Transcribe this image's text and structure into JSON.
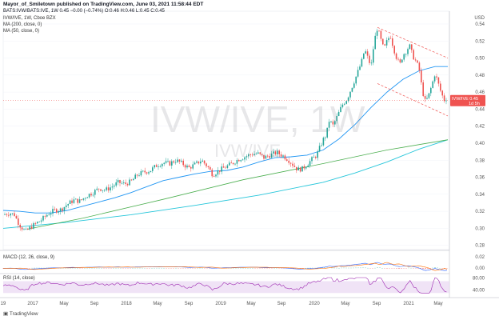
{
  "header": {
    "line1": "Mayor_of_Smiletown published on TradingView.com, June 03, 2021 11:58:44 EDT",
    "line2": "BATS:IVW/BATS:IVE, 1W  0.45 −0.00 (−0.74%) O:0.46 H:0.46 L:0.45 C:0.45",
    "symbol_line": "IVW/IVE, 1W, Cboe BZX",
    "ma200": "MA (200, close, 0)",
    "ma50": "MA (50, close, 0)"
  },
  "watermark": {
    "big": "IVW/IVE, 1W",
    "small": "IVW/IVE"
  },
  "price_tag": {
    "label": "IVW/IVE",
    "value": "0.45",
    "sub": "1d 5h"
  },
  "currency": "USD",
  "macd_label": "MACD (12, 26, close, 9)",
  "rsi_label": "RSI (14, close)",
  "footer": "TradingView",
  "colors": {
    "up": "#26a69a",
    "down": "#ef5350",
    "ma50": "#2196f3",
    "ma200": "#4caf50",
    "channel": "#ef5350",
    "rsi": "#9c27b0",
    "rsi_band": "#ead7f2"
  },
  "chart_data": {
    "type": "candlestick",
    "title": "IVW/IVE, 1W, Cboe BZX",
    "x_ticks": [
      "19",
      "2017",
      "May",
      "Sep",
      "2018",
      "May",
      "Sep",
      "2019",
      "May",
      "Sep",
      "2020",
      "May",
      "Sep",
      "2021",
      "May"
    ],
    "y_ticks": [
      "0.28",
      "0.30",
      "0.32",
      "0.34",
      "0.36",
      "0.38",
      "0.40",
      "0.42",
      "0.44",
      "0.46",
      "0.48",
      "0.50",
      "0.52",
      "0.54"
    ],
    "ylim": [
      0.275,
      0.555
    ],
    "last_value": 0.45,
    "close_path": [
      [
        0,
        0.316
      ],
      [
        8,
        0.318
      ],
      [
        14,
        0.316
      ],
      [
        18,
        0.308
      ],
      [
        22,
        0.302
      ],
      [
        28,
        0.296
      ],
      [
        34,
        0.301
      ],
      [
        40,
        0.305
      ],
      [
        48,
        0.31
      ],
      [
        56,
        0.317
      ],
      [
        64,
        0.321
      ],
      [
        72,
        0.322
      ],
      [
        80,
        0.328
      ],
      [
        88,
        0.333
      ],
      [
        96,
        0.332
      ],
      [
        104,
        0.338
      ],
      [
        112,
        0.342
      ],
      [
        120,
        0.347
      ],
      [
        128,
        0.345
      ],
      [
        136,
        0.349
      ],
      [
        144,
        0.354
      ],
      [
        152,
        0.352
      ],
      [
        160,
        0.355
      ],
      [
        168,
        0.363
      ],
      [
        176,
        0.366
      ],
      [
        184,
        0.368
      ],
      [
        192,
        0.374
      ],
      [
        200,
        0.377
      ],
      [
        208,
        0.376
      ],
      [
        216,
        0.38
      ],
      [
        224,
        0.376
      ],
      [
        232,
        0.371
      ],
      [
        240,
        0.375
      ],
      [
        248,
        0.38
      ],
      [
        256,
        0.372
      ],
      [
        262,
        0.363
      ],
      [
        270,
        0.368
      ],
      [
        278,
        0.372
      ],
      [
        286,
        0.376
      ],
      [
        294,
        0.381
      ],
      [
        302,
        0.384
      ],
      [
        310,
        0.387
      ],
      [
        318,
        0.388
      ],
      [
        326,
        0.383
      ],
      [
        334,
        0.386
      ],
      [
        342,
        0.389
      ],
      [
        350,
        0.385
      ],
      [
        356,
        0.381
      ],
      [
        362,
        0.375
      ],
      [
        368,
        0.369
      ],
      [
        374,
        0.37
      ],
      [
        380,
        0.375
      ],
      [
        386,
        0.381
      ],
      [
        392,
        0.386
      ],
      [
        396,
        0.395
      ],
      [
        400,
        0.404
      ],
      [
        404,
        0.41
      ],
      [
        408,
        0.428
      ],
      [
        412,
        0.42
      ],
      [
        418,
        0.432
      ],
      [
        424,
        0.445
      ],
      [
        430,
        0.452
      ],
      [
        436,
        0.466
      ],
      [
        442,
        0.48
      ],
      [
        448,
        0.495
      ],
      [
        452,
        0.51
      ],
      [
        456,
        0.5
      ],
      [
        460,
        0.49
      ],
      [
        464,
        0.52
      ],
      [
        468,
        0.536
      ],
      [
        472,
        0.522
      ],
      [
        476,
        0.51
      ],
      [
        480,
        0.52
      ],
      [
        484,
        0.527
      ],
      [
        488,
        0.512
      ],
      [
        492,
        0.5
      ],
      [
        496,
        0.492
      ],
      [
        500,
        0.504
      ],
      [
        504,
        0.508
      ],
      [
        508,
        0.515
      ],
      [
        512,
        0.503
      ],
      [
        516,
        0.496
      ],
      [
        520,
        0.488
      ],
      [
        524,
        0.462
      ],
      [
        528,
        0.448
      ],
      [
        532,
        0.456
      ],
      [
        536,
        0.468
      ],
      [
        540,
        0.482
      ],
      [
        544,
        0.47
      ],
      [
        548,
        0.458
      ],
      [
        552,
        0.45
      ],
      [
        556,
        0.455
      ]
    ],
    "ma50_path": [
      [
        0,
        0.321
      ],
      [
        20,
        0.32
      ],
      [
        40,
        0.318
      ],
      [
        60,
        0.318
      ],
      [
        80,
        0.321
      ],
      [
        100,
        0.326
      ],
      [
        120,
        0.331
      ],
      [
        140,
        0.336
      ],
      [
        160,
        0.342
      ],
      [
        180,
        0.349
      ],
      [
        200,
        0.356
      ],
      [
        220,
        0.36
      ],
      [
        240,
        0.364
      ],
      [
        260,
        0.367
      ],
      [
        280,
        0.368
      ],
      [
        300,
        0.372
      ],
      [
        320,
        0.378
      ],
      [
        340,
        0.383
      ],
      [
        360,
        0.384
      ],
      [
        380,
        0.386
      ],
      [
        400,
        0.392
      ],
      [
        420,
        0.405
      ],
      [
        440,
        0.422
      ],
      [
        460,
        0.442
      ],
      [
        480,
        0.46
      ],
      [
        500,
        0.475
      ],
      [
        520,
        0.485
      ],
      [
        540,
        0.49
      ],
      [
        556,
        0.49
      ]
    ],
    "ma200_path": [
      [
        30,
        0.299
      ],
      [
        100,
        0.312
      ],
      [
        200,
        0.334
      ],
      [
        300,
        0.357
      ],
      [
        400,
        0.376
      ],
      [
        480,
        0.392
      ],
      [
        556,
        0.404
      ]
    ],
    "series_extra_path": [
      [
        0,
        0.3
      ],
      [
        80,
        0.307
      ],
      [
        160,
        0.316
      ],
      [
        240,
        0.327
      ],
      [
        320,
        0.339
      ],
      [
        400,
        0.354
      ],
      [
        440,
        0.365
      ],
      [
        480,
        0.378
      ],
      [
        520,
        0.393
      ],
      [
        556,
        0.404
      ]
    ],
    "channel_upper": [
      [
        468,
        0.536
      ],
      [
        556,
        0.5
      ]
    ],
    "channel_lower": [
      [
        468,
        0.47
      ],
      [
        556,
        0.432
      ]
    ],
    "macd_ticks": [
      "0.02",
      "0.00"
    ],
    "rsi_ticks": [
      "80.00",
      "40.00"
    ]
  }
}
